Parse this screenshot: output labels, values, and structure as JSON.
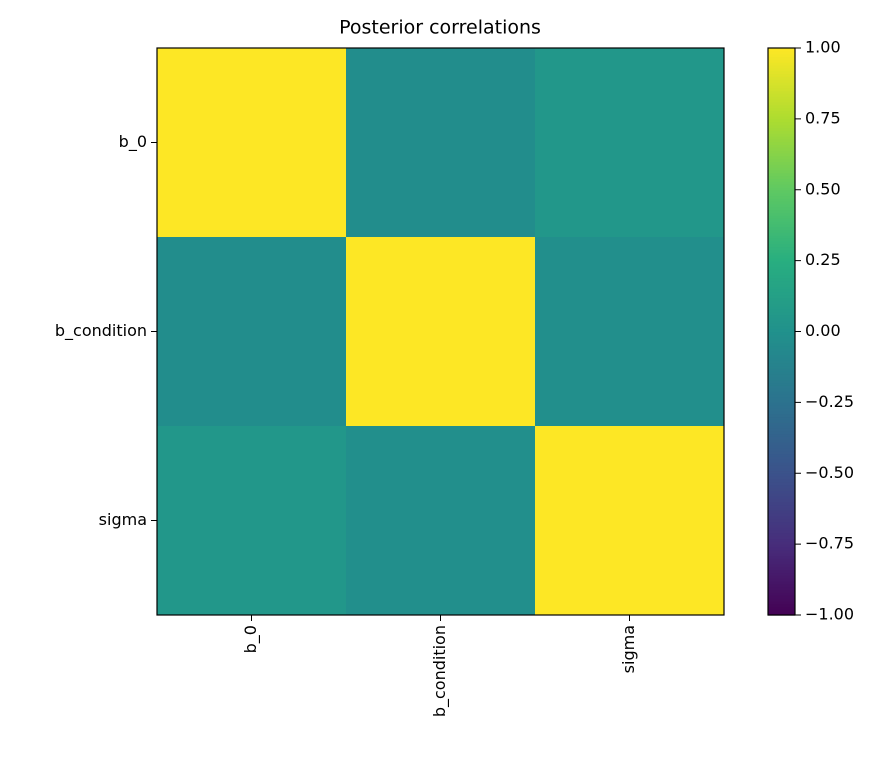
{
  "chart_data": {
    "type": "heatmap",
    "title": "Posterior correlations",
    "x_categories": [
      "b_0",
      "b_condition",
      "sigma"
    ],
    "y_categories": [
      "b_0",
      "b_condition",
      "sigma"
    ],
    "values": [
      [
        1,
        -0.03,
        0.05
      ],
      [
        -0.03,
        1,
        -0.02
      ],
      [
        0.05,
        -0.02,
        1
      ]
    ],
    "colormap": "viridis",
    "zlim": [
      -1,
      1
    ],
    "colorbar_ticks": [
      {
        "value": -1,
        "label": "−1.00"
      },
      {
        "value": -0.75,
        "label": "−0.75"
      },
      {
        "value": -0.5,
        "label": "−0.50"
      },
      {
        "value": -0.25,
        "label": "−0.25"
      },
      {
        "value": 0,
        "label": "0.00"
      },
      0.25,
      {
        "value": 0.5,
        "label": "0.50"
      },
      0.75,
      {
        "value": 1,
        "label": "1.00"
      }
    ]
  }
}
